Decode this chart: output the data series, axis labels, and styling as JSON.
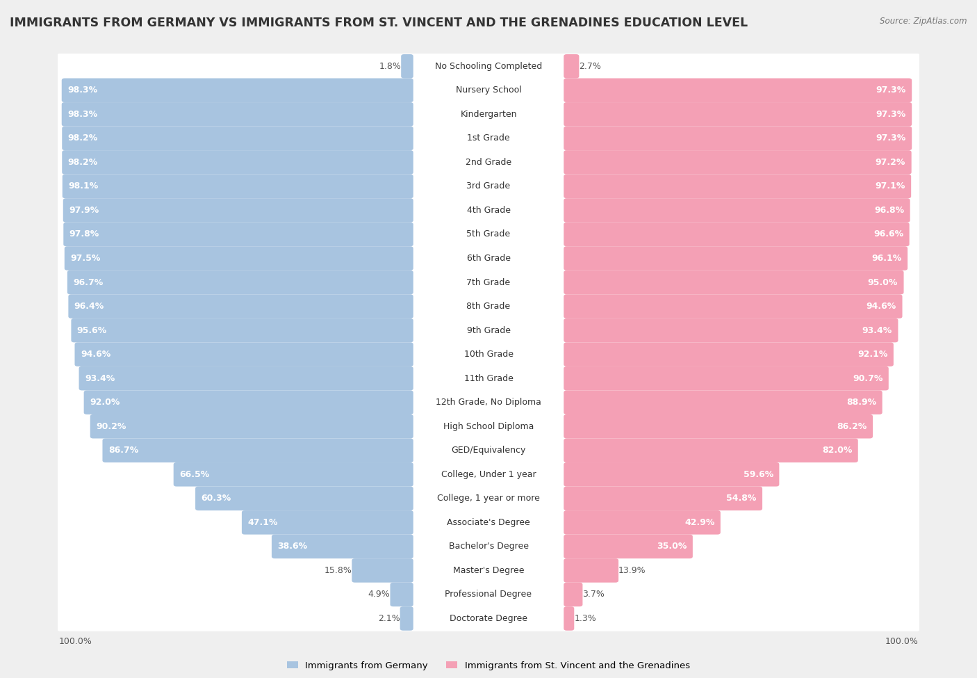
{
  "title": "IMMIGRANTS FROM GERMANY VS IMMIGRANTS FROM ST. VINCENT AND THE GRENADINES EDUCATION LEVEL",
  "source": "Source: ZipAtlas.com",
  "categories": [
    "No Schooling Completed",
    "Nursery School",
    "Kindergarten",
    "1st Grade",
    "2nd Grade",
    "3rd Grade",
    "4th Grade",
    "5th Grade",
    "6th Grade",
    "7th Grade",
    "8th Grade",
    "9th Grade",
    "10th Grade",
    "11th Grade",
    "12th Grade, No Diploma",
    "High School Diploma",
    "GED/Equivalency",
    "College, Under 1 year",
    "College, 1 year or more",
    "Associate's Degree",
    "Bachelor's Degree",
    "Master's Degree",
    "Professional Degree",
    "Doctorate Degree"
  ],
  "germany_values": [
    1.8,
    98.3,
    98.3,
    98.2,
    98.2,
    98.1,
    97.9,
    97.8,
    97.5,
    96.7,
    96.4,
    95.6,
    94.6,
    93.4,
    92.0,
    90.2,
    86.7,
    66.5,
    60.3,
    47.1,
    38.6,
    15.8,
    4.9,
    2.1
  ],
  "svg_values": [
    2.7,
    97.3,
    97.3,
    97.3,
    97.2,
    97.1,
    96.8,
    96.6,
    96.1,
    95.0,
    94.6,
    93.4,
    92.1,
    90.7,
    88.9,
    86.2,
    82.0,
    59.6,
    54.8,
    42.9,
    35.0,
    13.9,
    3.7,
    1.3
  ],
  "germany_color": "#a8c4e0",
  "svg_color": "#f4a0b5",
  "background_color": "#efefef",
  "bar_background": "#ffffff",
  "title_fontsize": 12.5,
  "label_fontsize": 9.0,
  "category_fontsize": 9.0,
  "legend_label_germany": "Immigrants from Germany",
  "legend_label_svg": "Immigrants from St. Vincent and the Grenadines"
}
